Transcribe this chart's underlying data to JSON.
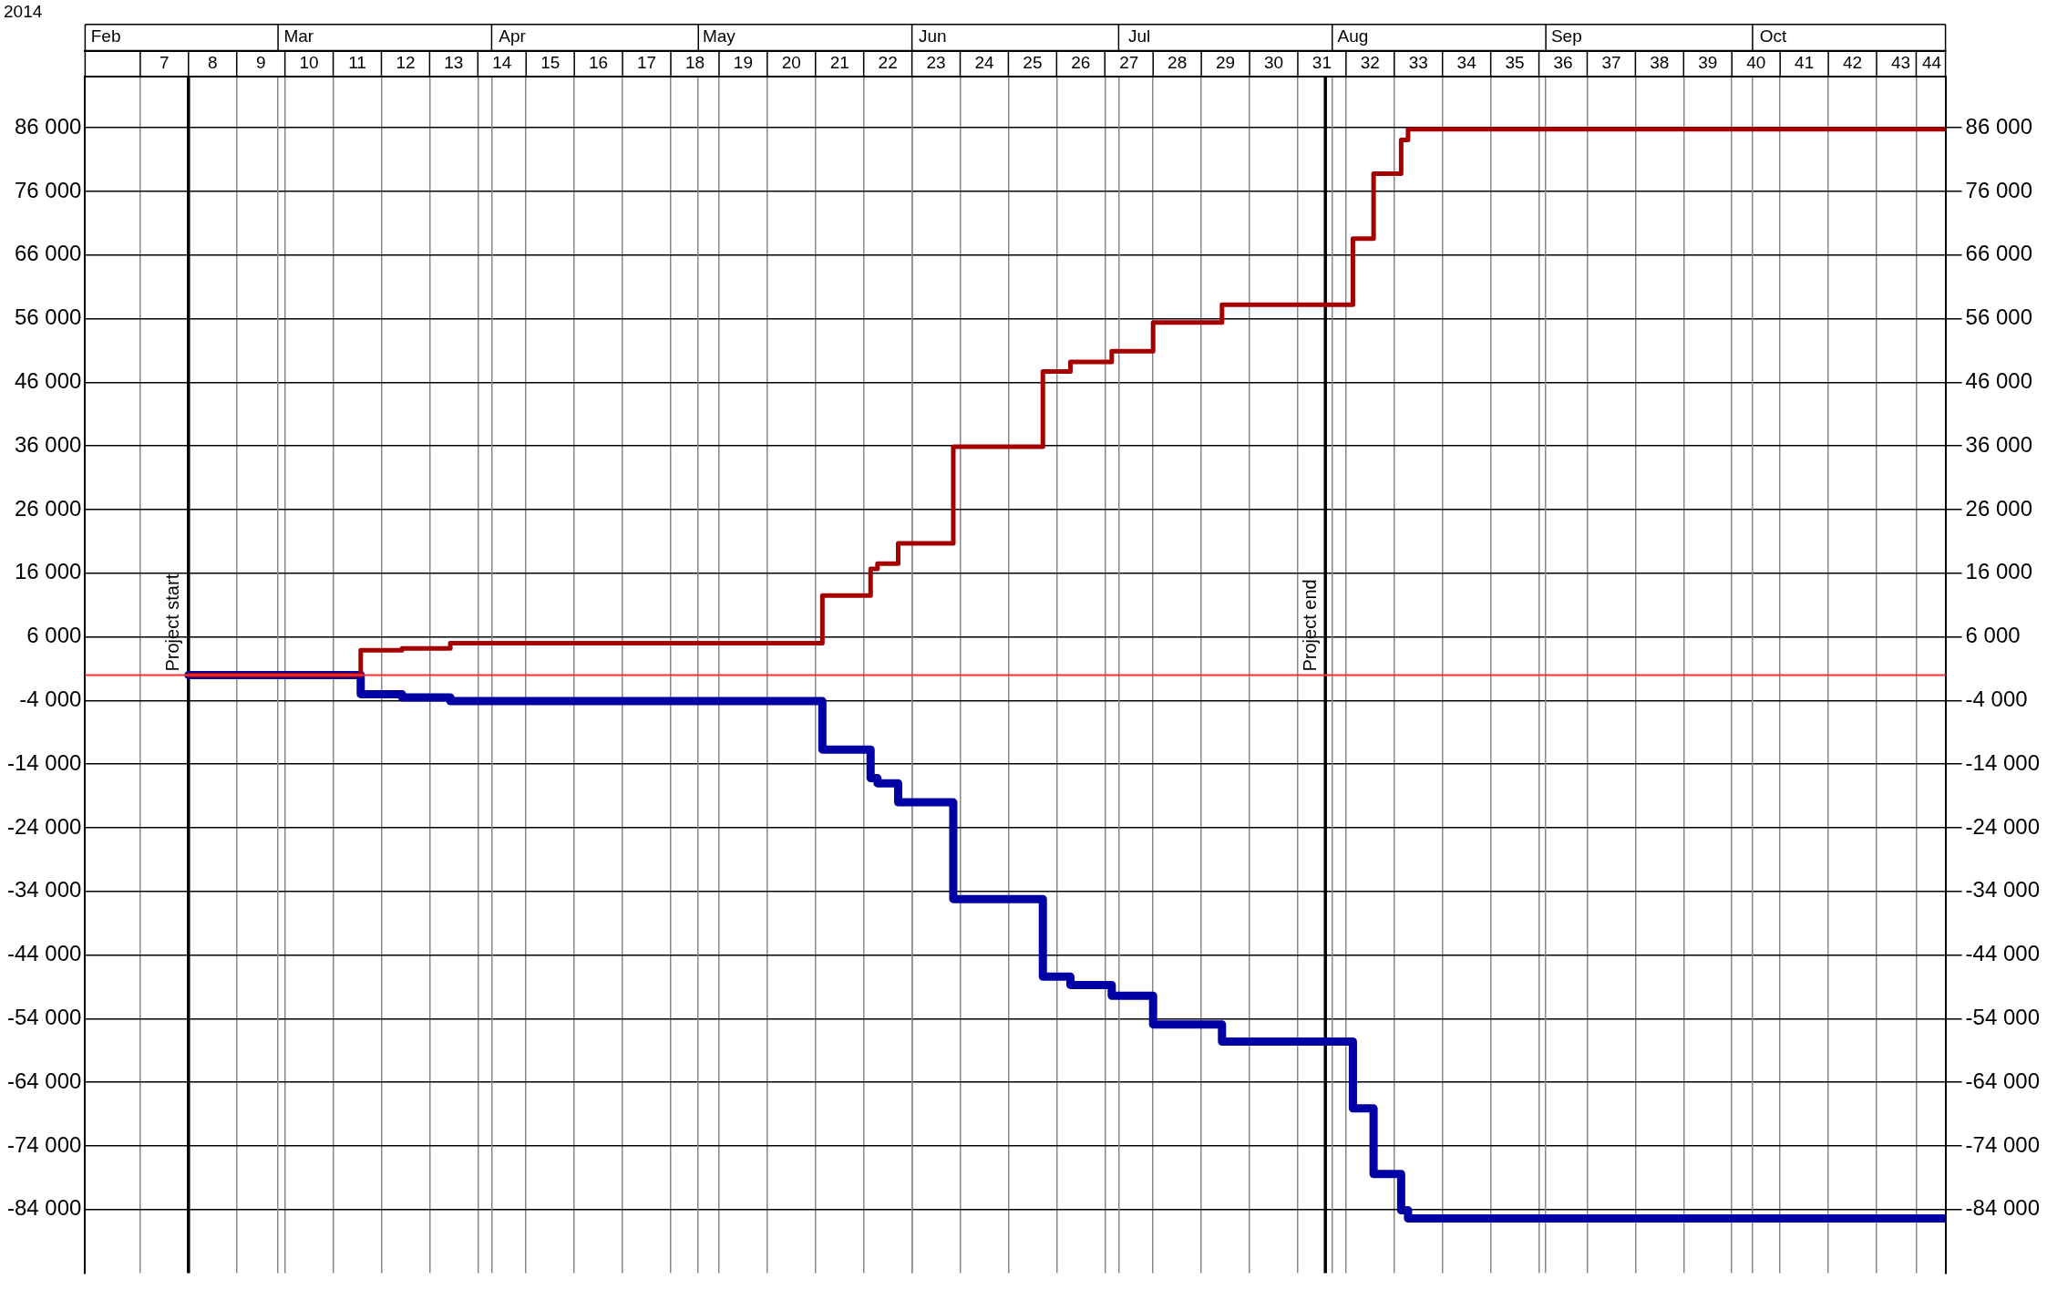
{
  "chart_data": {
    "type": "step",
    "title": "2014",
    "x": [
      "2014-02-16",
      "2014-03-13",
      "2014-03-19",
      "2014-03-26",
      "2014-05-19",
      "2014-05-26",
      "2014-05-27",
      "2014-05-30",
      "2014-06-07",
      "2014-06-20",
      "2014-06-24",
      "2014-06-30",
      "2014-07-06",
      "2014-07-16",
      "2014-08-04",
      "2014-08-07",
      "2014-08-11",
      "2014-08-12",
      "2014-10-29"
    ],
    "series": [
      {
        "color": "#a50000",
        "values": [
          0,
          3900,
          4200,
          5000,
          12500,
          16700,
          17500,
          20700,
          35900,
          47700,
          49200,
          50900,
          55400,
          58200,
          68600,
          78800,
          84100,
          85800,
          85800
        ]
      },
      {
        "color": "#0000a5",
        "values": [
          0,
          -3000,
          -3500,
          -4100,
          -11700,
          -16200,
          -17000,
          -20000,
          -35200,
          -47400,
          -48700,
          -50400,
          -54900,
          -57600,
          -68100,
          -78400,
          -84100,
          -85400,
          -85400
        ]
      }
    ],
    "xlim": [
      "2014-02-01",
      "2014-10-29"
    ],
    "xticks": [
      {
        "value": "2014-02-12T12:00",
        "label": "7"
      },
      {
        "value": "2014-02-19T12:00",
        "label": "8"
      },
      {
        "value": "2014-02-26T12:00",
        "label": "9"
      },
      {
        "value": "2014-03-05T12:00",
        "label": "10"
      },
      {
        "value": "2014-03-12T12:00",
        "label": "11"
      },
      {
        "value": "2014-03-19T12:00",
        "label": "12"
      },
      {
        "value": "2014-03-26T12:00",
        "label": "13"
      },
      {
        "value": "2014-04-02T12:00",
        "label": "14"
      },
      {
        "value": "2014-04-09T12:00",
        "label": "15"
      },
      {
        "value": "2014-04-16T12:00",
        "label": "16"
      },
      {
        "value": "2014-04-23T12:00",
        "label": "17"
      },
      {
        "value": "2014-04-30T12:00",
        "label": "18"
      },
      {
        "value": "2014-05-07T12:00",
        "label": "19"
      },
      {
        "value": "2014-05-14T12:00",
        "label": "20"
      },
      {
        "value": "2014-05-21T12:00",
        "label": "21"
      },
      {
        "value": "2014-05-28T12:00",
        "label": "22"
      },
      {
        "value": "2014-06-04T12:00",
        "label": "23"
      },
      {
        "value": "2014-06-11T12:00",
        "label": "24"
      },
      {
        "value": "2014-06-18T12:00",
        "label": "25"
      },
      {
        "value": "2014-06-25T12:00",
        "label": "26"
      },
      {
        "value": "2014-07-02T12:00",
        "label": "27"
      },
      {
        "value": "2014-07-09T12:00",
        "label": "28"
      },
      {
        "value": "2014-07-16T12:00",
        "label": "29"
      },
      {
        "value": "2014-07-23T12:00",
        "label": "30"
      },
      {
        "value": "2014-07-30T12:00",
        "label": "31"
      },
      {
        "value": "2014-08-06T12:00",
        "label": "32"
      },
      {
        "value": "2014-08-13T12:00",
        "label": "33"
      },
      {
        "value": "2014-08-20T12:00",
        "label": "34"
      },
      {
        "value": "2014-08-27T12:00",
        "label": "35"
      },
      {
        "value": "2014-09-03T12:00",
        "label": "36"
      },
      {
        "value": "2014-09-10T12:00",
        "label": "37"
      },
      {
        "value": "2014-09-17T12:00",
        "label": "38"
      },
      {
        "value": "2014-09-24T12:00",
        "label": "39"
      },
      {
        "value": "2014-10-01T12:00",
        "label": "40"
      },
      {
        "value": "2014-10-08T12:00",
        "label": "41"
      },
      {
        "value": "2014-10-15T12:00",
        "label": "42"
      },
      {
        "value": "2014-10-22T12:00",
        "label": "43"
      },
      {
        "value": "2014-10-27",
        "label": "44"
      }
    ],
    "x2lim": [
      "2014-02-01",
      "2014-10-29"
    ],
    "x2ticks": [
      {
        "value": "2014-02-04",
        "label": "Feb"
      },
      {
        "value": "2014-03-01",
        "label": null
      },
      {
        "value": "2014-03-04",
        "label": "Mar"
      },
      {
        "value": "2014-04-01",
        "label": null
      },
      {
        "value": "2014-04-04",
        "label": "Apr"
      },
      {
        "value": "2014-05-01",
        "label": null
      },
      {
        "value": "2014-05-04",
        "label": "May"
      },
      {
        "value": "2014-06-01",
        "label": null
      },
      {
        "value": "2014-06-04",
        "label": "Jun"
      },
      {
        "value": "2014-07-01",
        "label": null
      },
      {
        "value": "2014-07-04",
        "label": "Jul"
      },
      {
        "value": "2014-08-01",
        "label": null
      },
      {
        "value": "2014-08-04",
        "label": "Aug"
      },
      {
        "value": "2014-09-01",
        "label": null
      },
      {
        "value": "2014-09-04",
        "label": "Sep"
      },
      {
        "value": "2014-10-01",
        "label": null
      },
      {
        "value": "2014-10-04",
        "label": "Oct"
      }
    ],
    "ylim": [
      -94000,
      94000
    ],
    "yticks": [
      {
        "value": 86000,
        "label": "86 000"
      },
      {
        "value": 76000,
        "label": "76 000"
      },
      {
        "value": 66000,
        "label": "66 000"
      },
      {
        "value": 56000,
        "label": "56 000"
      },
      {
        "value": 46000,
        "label": "46 000"
      },
      {
        "value": 36000,
        "label": "36 000"
      },
      {
        "value": 26000,
        "label": "26 000"
      },
      {
        "value": 16000,
        "label": "16 000"
      },
      {
        "value": 6000,
        "label": "6 000"
      },
      {
        "value": -4000,
        "label": "-4 000"
      },
      {
        "value": -14000,
        "label": "-14 000"
      },
      {
        "value": -24000,
        "label": "-24 000"
      },
      {
        "value": -34000,
        "label": "-34 000"
      },
      {
        "value": -44000,
        "label": "-44 000"
      },
      {
        "value": -54000,
        "label": "-54 000"
      },
      {
        "value": -64000,
        "label": "-64 000"
      },
      {
        "value": -74000,
        "label": "-74 000"
      },
      {
        "value": -84000,
        "label": "-84 000"
      }
    ],
    "y2lim": [
      -94000,
      94000
    ],
    "y2ticks": [
      {
        "value": 86000,
        "label": "86 000"
      },
      {
        "value": 76000,
        "label": "76 000"
      },
      {
        "value": 66000,
        "label": "66 000"
      },
      {
        "value": 56000,
        "label": "56 000"
      },
      {
        "value": 46000,
        "label": "46 000"
      },
      {
        "value": 36000,
        "label": "36 000"
      },
      {
        "value": 26000,
        "label": "26 000"
      },
      {
        "value": 16000,
        "label": "16 000"
      },
      {
        "value": 6000,
        "label": "6 000"
      },
      {
        "value": -4000,
        "label": "-4 000"
      },
      {
        "value": -14000,
        "label": "-14 000"
      },
      {
        "value": -24000,
        "label": "-24 000"
      },
      {
        "value": -34000,
        "label": "-34 000"
      },
      {
        "value": -44000,
        "label": "-44 000"
      },
      {
        "value": -54000,
        "label": "-54 000"
      },
      {
        "value": -64000,
        "label": "-64 000"
      },
      {
        "value": -74000,
        "label": "-74 000"
      },
      {
        "value": -84000,
        "label": "-84 000"
      }
    ],
    "ref_lines": [
      {
        "axis": "x",
        "value": "2014-02-16",
        "label": "Project start",
        "color": "#000000"
      },
      {
        "axis": "x",
        "value": "2014-07-31",
        "label": "Project end",
        "color": "#000000"
      },
      {
        "axis": "y",
        "value": 0,
        "color": "#ff3333"
      }
    ],
    "grid": true,
    "legend": false
  }
}
